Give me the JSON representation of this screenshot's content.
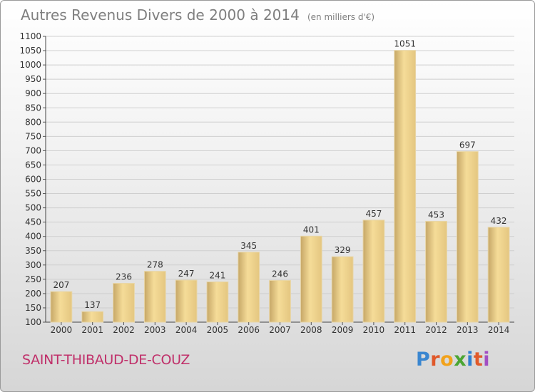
{
  "header": {
    "title": "Autres Revenus Divers de 2000 à 2014",
    "unit": "(en milliers d'€)"
  },
  "footer": {
    "commune": "SAINT-THIBAUD-DE-COUZ",
    "logo": [
      "P",
      "r",
      "o",
      "x",
      "i",
      "t",
      "i"
    ]
  },
  "colors": {
    "bar_light": "#f5dc98",
    "bar_dark": "#c6a767",
    "grid": "#cfcfcf",
    "title": "#7f7f7f",
    "commune": "#c0306a"
  },
  "chart_data": {
    "type": "bar",
    "title": "Autres Revenus Divers de 2000 à 2014",
    "subtitle": "(en milliers d'€)",
    "categories": [
      "2000",
      "2001",
      "2002",
      "2003",
      "2004",
      "2005",
      "2006",
      "2007",
      "2008",
      "2009",
      "2010",
      "2011",
      "2012",
      "2013",
      "2014"
    ],
    "values": [
      207,
      137,
      236,
      278,
      247,
      241,
      345,
      246,
      401,
      329,
      457,
      1051,
      453,
      697,
      432
    ],
    "ylim": [
      100,
      1100
    ],
    "yticks": [
      100,
      150,
      200,
      250,
      300,
      350,
      400,
      450,
      500,
      550,
      600,
      650,
      700,
      750,
      800,
      850,
      900,
      950,
      1000,
      1050,
      1100
    ],
    "grid": true,
    "xlabel": "",
    "ylabel": ""
  }
}
